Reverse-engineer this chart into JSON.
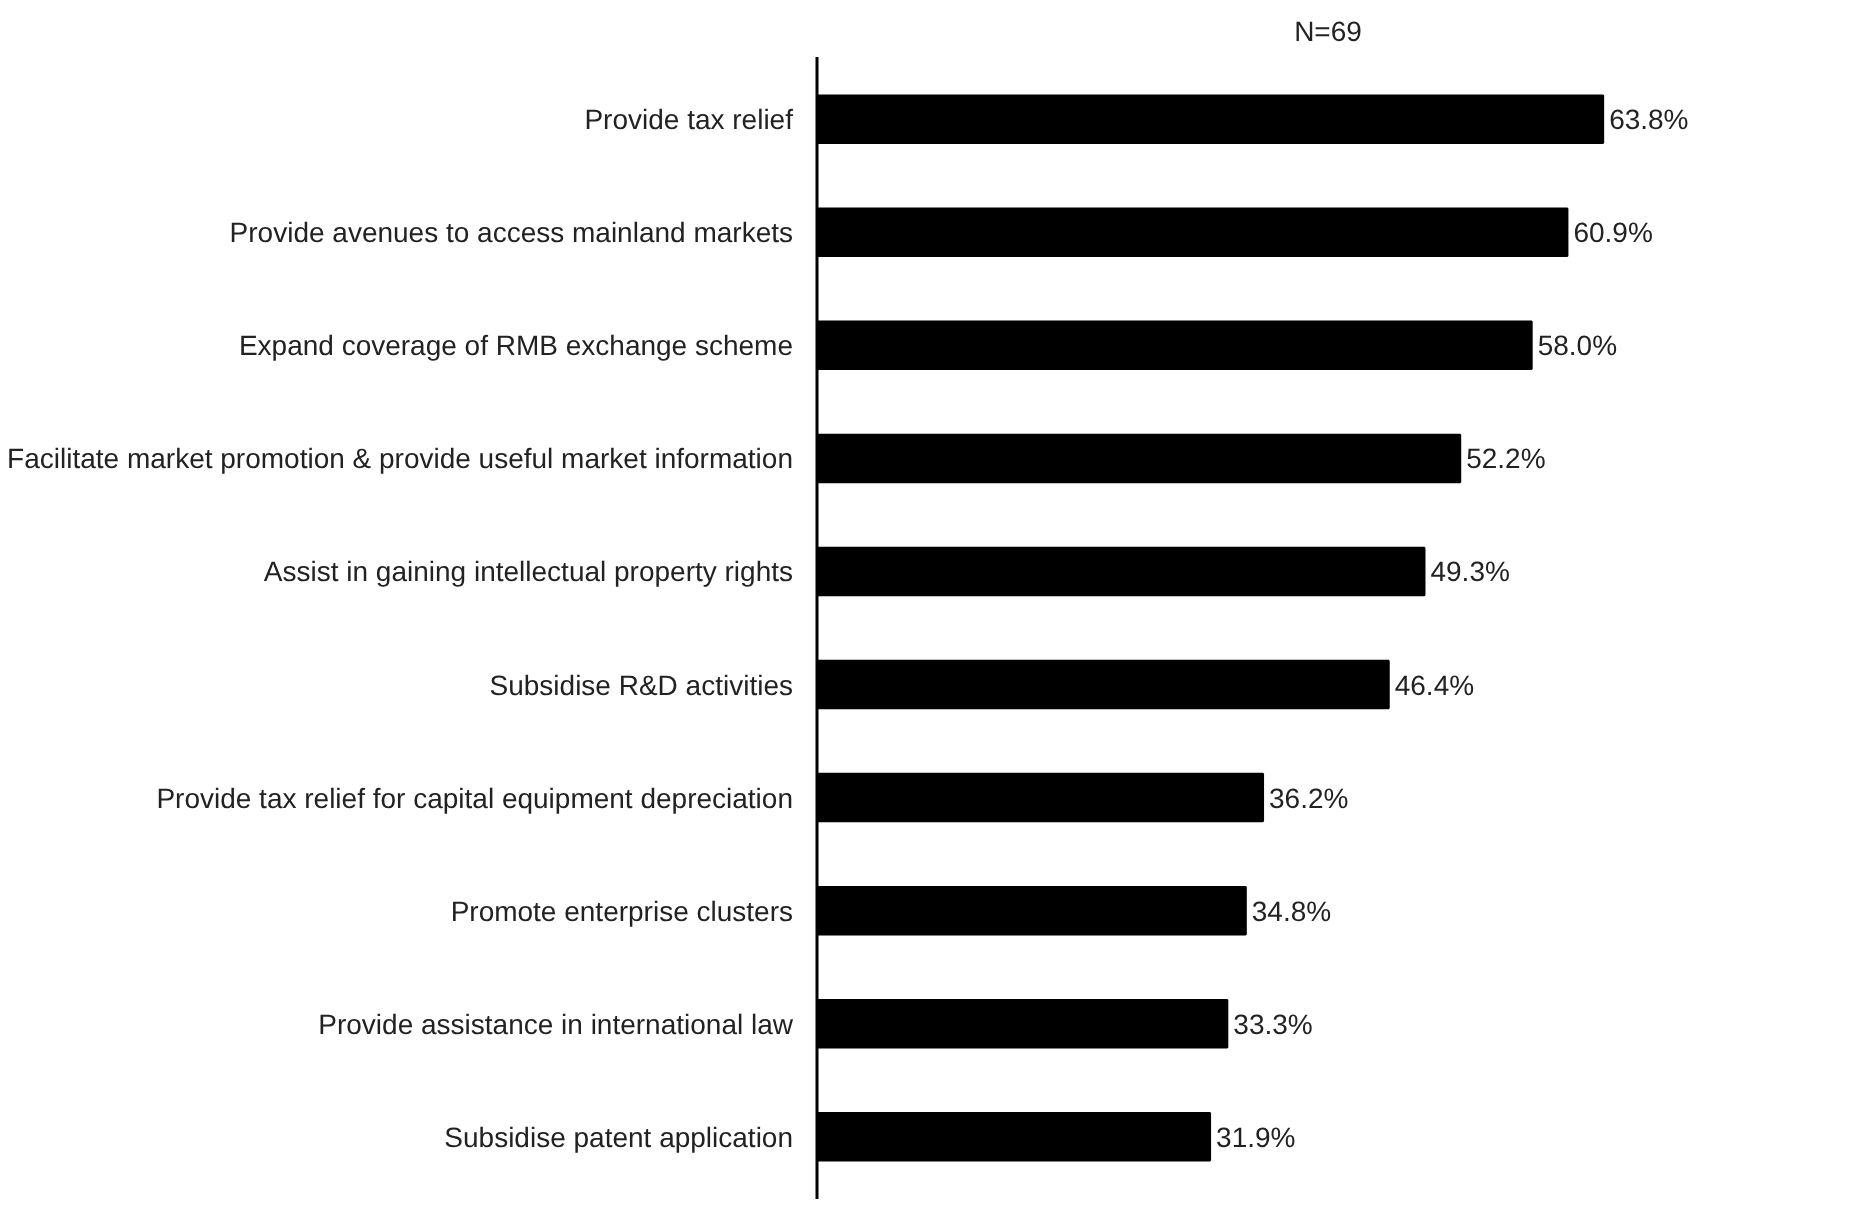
{
  "chart_data": {
    "type": "bar",
    "orientation": "horizontal",
    "title": "N=69",
    "categories": [
      "Provide tax relief",
      "Provide avenues to access mainland markets",
      "Expand coverage of RMB exchange scheme",
      "Facilitate market promotion & provide useful market information",
      "Assist in gaining intellectual property rights",
      "Subsidise R&D activities",
      "Provide tax relief for capital equipment depreciation",
      "Promote enterprise clusters",
      "Provide assistance in international law",
      "Subsidise patent application"
    ],
    "values": [
      63.8,
      60.9,
      58.0,
      52.2,
      49.3,
      46.4,
      36.2,
      34.8,
      33.3,
      31.9
    ],
    "value_labels": [
      "63.8%",
      "60.9%",
      "58.0%",
      "52.2%",
      "49.3%",
      "46.4%",
      "36.2%",
      "34.8%",
      "33.3%",
      "31.9%"
    ],
    "color": "#000000",
    "grid": false
  }
}
